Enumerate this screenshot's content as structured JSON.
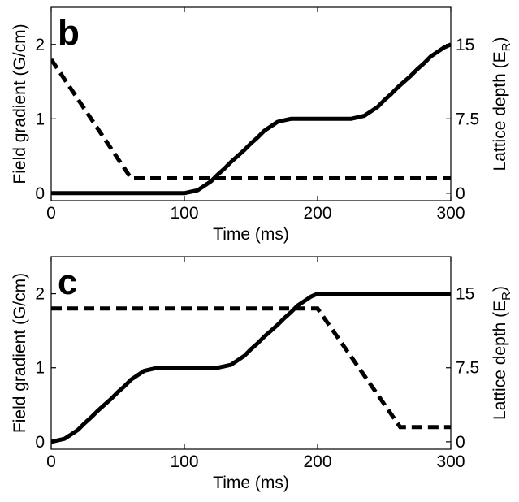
{
  "chart_data": [
    {
      "type": "line",
      "panel_label": "b",
      "xlabel": "Time (ms)",
      "ylabel": "Field gradient (G/cm)",
      "y2label_main": "Lattice depth (E",
      "y2label_sub": "R",
      "y2label_close": ")",
      "xlim": [
        0,
        300
      ],
      "ylim": [
        -0.1,
        2.5
      ],
      "y2lim": [
        -0.75,
        18.75
      ],
      "xticks": [
        0,
        100,
        200,
        300
      ],
      "yticks": [
        0,
        1,
        2
      ],
      "y2ticks": [
        "0",
        "7.5",
        "15"
      ],
      "y2tick_values": [
        0,
        7.5,
        15
      ],
      "grid": false,
      "series": [
        {
          "axis": "left",
          "style": "solid",
          "x": [
            0,
            100,
            105,
            110,
            115,
            120,
            125,
            130,
            135,
            140,
            145,
            150,
            155,
            160,
            165,
            170,
            175,
            180,
            225,
            230,
            235,
            240,
            245,
            250,
            255,
            260,
            265,
            270,
            275,
            280,
            285,
            290,
            295,
            300
          ],
          "y": [
            0,
            0,
            0.02,
            0.04,
            0.1,
            0.16,
            0.25,
            0.33,
            0.42,
            0.5,
            0.58,
            0.67,
            0.75,
            0.84,
            0.9,
            0.96,
            0.98,
            1.0,
            1.0,
            1.02,
            1.04,
            1.1,
            1.16,
            1.25,
            1.33,
            1.42,
            1.5,
            1.58,
            1.67,
            1.75,
            1.84,
            1.9,
            1.96,
            2.0
          ]
        },
        {
          "axis": "left",
          "style": "dashed",
          "x": [
            0,
            60,
            300
          ],
          "y": [
            1.8,
            0.2,
            0.2
          ]
        }
      ]
    },
    {
      "type": "line",
      "panel_label": "c",
      "xlabel": "Time (ms)",
      "ylabel": "Field gradient (G/cm)",
      "y2label_main": "Lattice depth (E",
      "y2label_sub": "R",
      "y2label_close": ")",
      "xlim": [
        0,
        300
      ],
      "ylim": [
        -0.1,
        2.5
      ],
      "y2lim": [
        -0.75,
        18.75
      ],
      "xticks": [
        0,
        100,
        200,
        300
      ],
      "yticks": [
        0,
        1,
        2
      ],
      "y2ticks": [
        "0",
        "7.5",
        "15"
      ],
      "y2tick_values": [
        0,
        7.5,
        15
      ],
      "grid": false,
      "series": [
        {
          "axis": "left",
          "style": "solid",
          "x": [
            0,
            5,
            10,
            15,
            20,
            25,
            30,
            35,
            40,
            45,
            50,
            55,
            60,
            65,
            70,
            75,
            80,
            125,
            130,
            135,
            140,
            145,
            150,
            155,
            160,
            165,
            170,
            175,
            180,
            185,
            190,
            195,
            200,
            300
          ],
          "y": [
            0,
            0.02,
            0.04,
            0.1,
            0.16,
            0.25,
            0.33,
            0.42,
            0.5,
            0.58,
            0.67,
            0.75,
            0.84,
            0.9,
            0.96,
            0.98,
            1.0,
            1.0,
            1.02,
            1.04,
            1.1,
            1.16,
            1.25,
            1.33,
            1.42,
            1.5,
            1.58,
            1.67,
            1.75,
            1.84,
            1.9,
            1.96,
            2.0,
            2.0
          ]
        },
        {
          "axis": "left",
          "style": "dashed",
          "x": [
            0,
            200,
            262,
            300
          ],
          "y": [
            1.8,
            1.8,
            0.2,
            0.2
          ]
        }
      ]
    }
  ]
}
